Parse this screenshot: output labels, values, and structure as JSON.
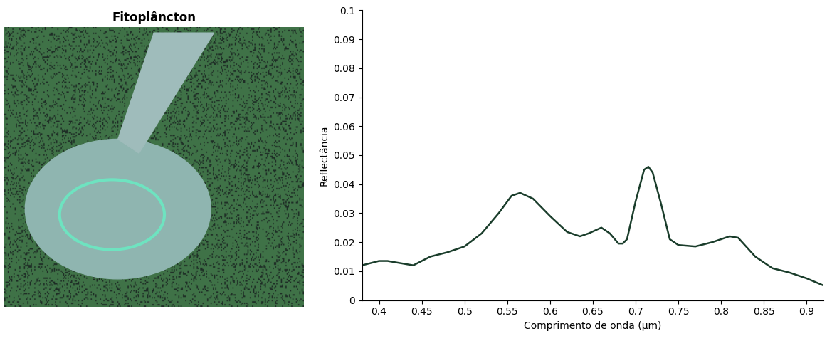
{
  "image_panel": {
    "title": "Fitoplâncton"
  },
  "chart_data": {
    "type": "line",
    "x": [
      0.38,
      0.4,
      0.41,
      0.42,
      0.44,
      0.46,
      0.48,
      0.5,
      0.52,
      0.54,
      0.555,
      0.565,
      0.58,
      0.6,
      0.62,
      0.635,
      0.645,
      0.66,
      0.67,
      0.68,
      0.685,
      0.69,
      0.7,
      0.71,
      0.715,
      0.72,
      0.73,
      0.74,
      0.75,
      0.77,
      0.79,
      0.81,
      0.82,
      0.84,
      0.86,
      0.88,
      0.9,
      0.92
    ],
    "values": [
      0.012,
      0.0135,
      0.0135,
      0.013,
      0.012,
      0.015,
      0.0165,
      0.0185,
      0.023,
      0.03,
      0.036,
      0.037,
      0.035,
      0.029,
      0.0235,
      0.022,
      0.023,
      0.025,
      0.023,
      0.0195,
      0.0195,
      0.021,
      0.034,
      0.045,
      0.046,
      0.044,
      0.033,
      0.021,
      0.019,
      0.0185,
      0.02,
      0.022,
      0.0215,
      0.015,
      0.011,
      0.0095,
      0.0075,
      0.005
    ],
    "color": "#1a3d2b",
    "x_label": "Comprimento de onda (μm)",
    "y_label": "Reflectância",
    "xlim": [
      0.38,
      0.92
    ],
    "xticks": [
      0.4,
      0.45,
      0.5,
      0.55,
      0.6,
      0.65,
      0.7,
      0.75,
      0.8,
      0.85,
      0.9
    ],
    "ylim": [
      0,
      0.1
    ],
    "yticks": [
      0,
      0.01,
      0.02,
      0.03,
      0.04,
      0.05,
      0.06,
      0.07,
      0.08,
      0.09,
      0.1
    ],
    "grid": false
  }
}
